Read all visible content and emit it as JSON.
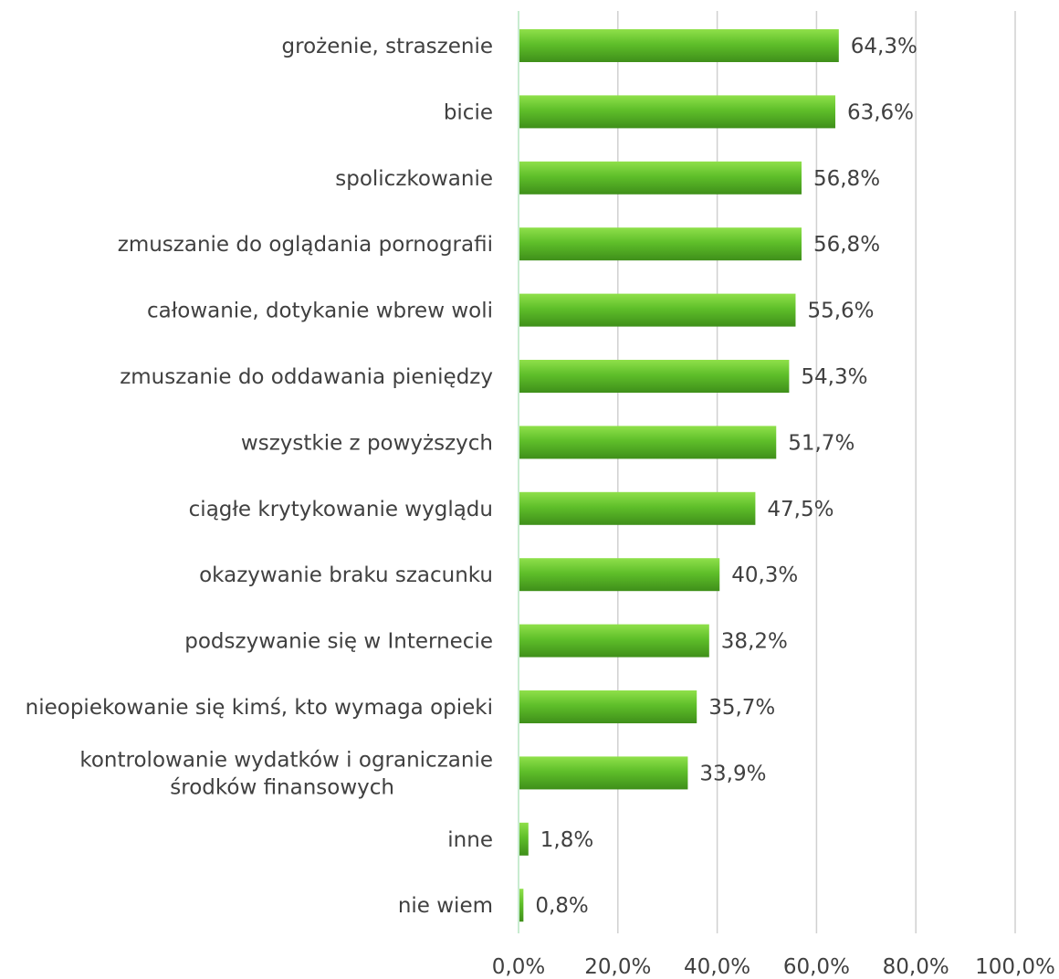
{
  "chart_data": {
    "type": "bar",
    "orientation": "horizontal",
    "title": "",
    "xlabel": "",
    "ylabel": "",
    "categories": [
      "grożenie, straszenie",
      "bicie",
      "spoliczkowanie",
      "zmuszanie do oglądania pornografii",
      "całowanie, dotykanie wbrew woli",
      "zmuszanie do oddawania pieniędzy",
      "wszystkie z powyższych",
      "ciągłe krytykowanie wyglądu",
      "okazywanie braku szacunku",
      "podszywanie się w Internecie",
      "nieopiekowanie się kimś, kto wymaga opieki",
      "kontrolowanie wydatków i ograniczanie środków finansowych",
      "inne",
      "nie wiem"
    ],
    "category_lines": [
      [
        "grożenie, straszenie"
      ],
      [
        "bicie"
      ],
      [
        "spoliczkowanie"
      ],
      [
        "zmuszanie do oglądania pornografii"
      ],
      [
        "całowanie, dotykanie wbrew woli"
      ],
      [
        "zmuszanie do oddawania pieniędzy"
      ],
      [
        "wszystkie z powyższych"
      ],
      [
        "ciągłe krytykowanie wyglądu"
      ],
      [
        "okazywanie braku szacunku"
      ],
      [
        "podszywanie się w Internecie"
      ],
      [
        "nieopiekowanie się kimś, kto wymaga opieki"
      ],
      [
        "kontrolowanie wydatków i ograniczanie",
        "środków finansowych"
      ],
      [
        "inne"
      ],
      [
        "nie wiem"
      ]
    ],
    "values": [
      64.3,
      63.6,
      56.8,
      56.8,
      55.6,
      54.3,
      51.7,
      47.5,
      40.3,
      38.2,
      35.7,
      33.9,
      1.8,
      0.8
    ],
    "value_labels": [
      "64,3%",
      "63,6%",
      "56,8%",
      "56,8%",
      "55,6%",
      "54,3%",
      "51,7%",
      "47,5%",
      "40,3%",
      "38,2%",
      "35,7%",
      "33,9%",
      "1,8%",
      "0,8%"
    ],
    "xlim": [
      0,
      100
    ],
    "x_ticks": [
      0,
      20,
      40,
      60,
      80,
      100
    ],
    "x_tick_labels": [
      "0,0%",
      "20,0%",
      "40,0%",
      "60,0%",
      "80,0%",
      "100,0%"
    ],
    "grid": true,
    "legend": "none",
    "colors": {
      "bar_light": "#8fe04a",
      "bar_mid": "#5fbf2a",
      "bar_dark": "#3f8f1a",
      "text": "#404040",
      "grid": "#d0d0d0"
    }
  }
}
